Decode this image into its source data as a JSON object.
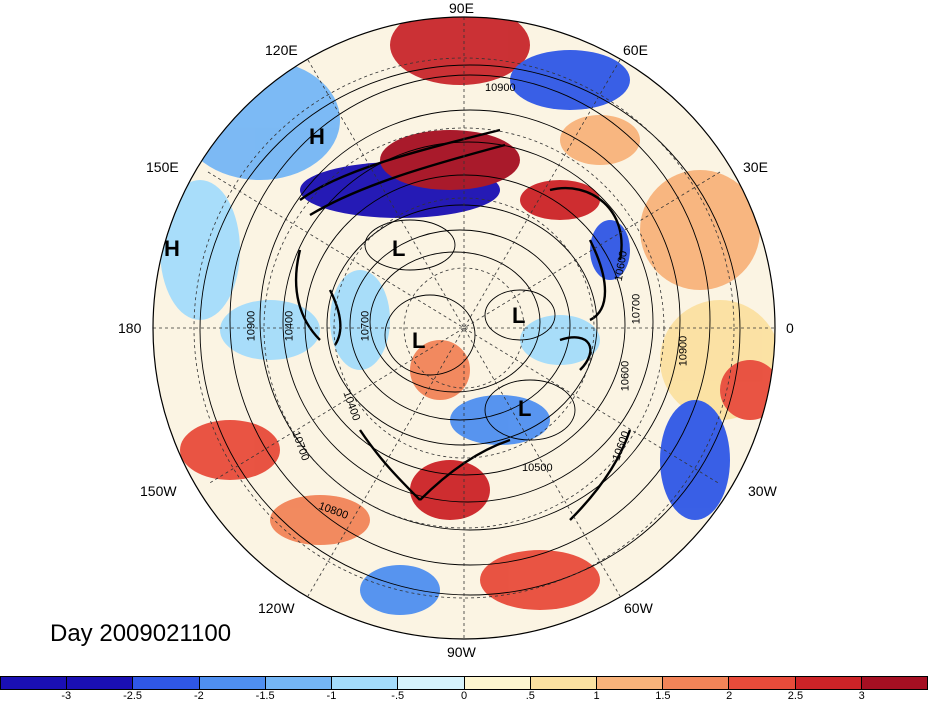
{
  "title": "Day 2009021100",
  "longitude_labels": {
    "e90": "90E",
    "e120": "120E",
    "e60": "60E",
    "e150": "150E",
    "e30": "30E",
    "w180": "180",
    "zero": "0",
    "w150": "150W",
    "w30": "30W",
    "w120": "120W",
    "w60": "60W",
    "w90": "90W"
  },
  "pressure_centers": [
    {
      "label": "H"
    },
    {
      "label": "H"
    },
    {
      "label": "L"
    },
    {
      "label": "L"
    },
    {
      "label": "L"
    },
    {
      "label": "L"
    }
  ],
  "contour_labels": [
    "10900",
    "10900",
    "10900",
    "10800",
    "10700",
    "10700",
    "10600",
    "10600",
    "10500",
    "10400",
    "10400",
    "10600",
    "10700"
  ],
  "colorbar": {
    "colors": [
      "#1a0fb3",
      "#2f57e6",
      "#4f8ff0",
      "#75b6f5",
      "#a4dcfb",
      "#d6f3fc",
      "#fdf6d0",
      "#fbe1a1",
      "#f8b37b",
      "#f28458",
      "#e84b3a",
      "#cc2327",
      "#a50f22"
    ],
    "ticks": [
      "-3",
      "-2.5",
      "-2",
      "-1.5",
      "-1",
      "-.5",
      "0",
      ".5",
      "1",
      "1.5",
      "2",
      "2.5",
      "3"
    ]
  }
}
